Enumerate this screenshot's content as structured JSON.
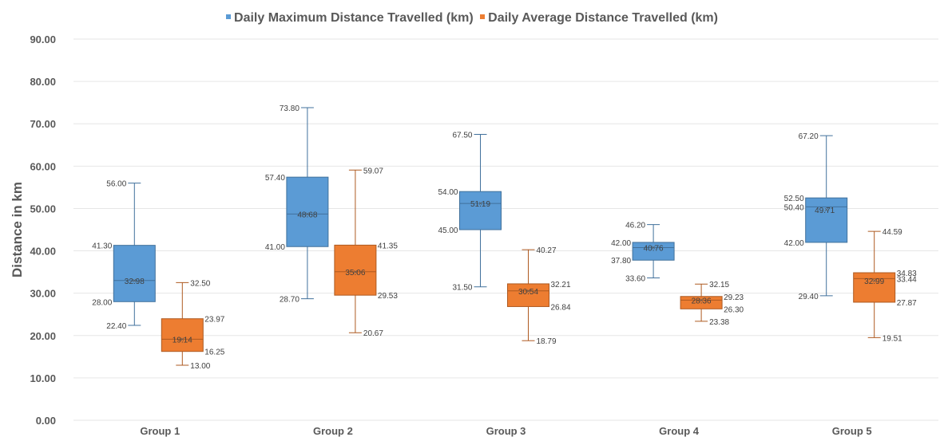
{
  "chart_data": {
    "type": "boxplot",
    "title": "",
    "xlabel": "",
    "ylabel": "Distance in km",
    "ylim": [
      0,
      90
    ],
    "y_ticks": [
      "0.00",
      "10.00",
      "20.00",
      "30.00",
      "40.00",
      "50.00",
      "60.00",
      "70.00",
      "80.00",
      "90.00"
    ],
    "categories": [
      "Group 1",
      "Group 2",
      "Group 3",
      "Group 4",
      "Group 5"
    ],
    "grid": true,
    "legend_position": "top-center",
    "series": [
      {
        "name": "Daily Maximum Distance Travelled (km)",
        "color": "#5B9BD5",
        "stroke": "#41719C",
        "boxes": [
          {
            "min": 22.4,
            "q1": 28.0,
            "median": 33.0,
            "mean": 32.98,
            "q3": 41.3,
            "max": 56.0,
            "labels": {
              "min": "22.40",
              "q1": "28.00",
              "mean": "32.98",
              "q3": "41.30",
              "max": "56.00"
            }
          },
          {
            "min": 28.7,
            "q1": 41.0,
            "median": 48.7,
            "mean": 48.68,
            "q3": 57.4,
            "max": 73.8,
            "labels": {
              "min": "28.70",
              "q1": "41.00",
              "mean": "48.68",
              "q3": "57.40",
              "max": "73.80"
            }
          },
          {
            "min": 31.5,
            "q1": 45.0,
            "median": 51.19,
            "mean": 51.19,
            "q3": 54.0,
            "max": 67.5,
            "labels": {
              "min": "31.50",
              "q1": "45.00",
              "mean": "51.19",
              "q3": "54.00",
              "max": "67.50"
            }
          },
          {
            "min": 33.6,
            "q1": 37.8,
            "median": 40.76,
            "mean": 40.76,
            "q3": 42.0,
            "max": 46.2,
            "labels": {
              "min": "33.60",
              "q1": "37.80",
              "mean": "40.76",
              "q3": "42.00",
              "max": "46.20"
            }
          },
          {
            "min": 29.4,
            "q1": 42.0,
            "median": 50.4,
            "mean": 49.71,
            "q3": 52.5,
            "max": 67.2,
            "labels": {
              "min": "29.40",
              "q1": "42.00",
              "median": "50.40",
              "mean": "49.71",
              "q3": "52.50",
              "max": "67.20"
            }
          }
        ]
      },
      {
        "name": "Daily Average Distance Travelled (km)",
        "color": "#ED7D31",
        "stroke": "#AE5A21",
        "boxes": [
          {
            "min": 13.0,
            "q1": 16.25,
            "median": 19.14,
            "mean": 19.14,
            "q3": 23.97,
            "max": 32.5,
            "labels": {
              "min": "13.00",
              "q1": "16.25",
              "mean": "19.14",
              "q3": "23.97",
              "max": "32.50"
            }
          },
          {
            "min": 20.67,
            "q1": 29.53,
            "median": 35.06,
            "mean": 35.06,
            "q3": 41.35,
            "max": 59.07,
            "labels": {
              "min": "20.67",
              "q1": "29.53",
              "mean": "35.06",
              "q3": "41.35",
              "max": "59.07"
            }
          },
          {
            "min": 18.79,
            "q1": 26.84,
            "median": 30.54,
            "mean": 30.54,
            "q3": 32.21,
            "max": 40.27,
            "labels": {
              "min": "18.79",
              "q1": "26.84",
              "mean": "30.54",
              "q3": "32.21",
              "max": "40.27"
            }
          },
          {
            "min": 23.38,
            "q1": 26.3,
            "median": 28.36,
            "mean": 28.36,
            "q3": 29.23,
            "max": 32.15,
            "labels": {
              "min": "23.38",
              "q1": "26.30",
              "mean": "28.36",
              "q3": "29.23",
              "max": "32.15"
            }
          },
          {
            "min": 19.51,
            "q1": 27.87,
            "median": 33.44,
            "mean": 32.99,
            "q3": 34.83,
            "max": 44.59,
            "labels": {
              "min": "19.51",
              "q1": "27.87",
              "median": "33.44",
              "mean": "32.99",
              "q3": "34.83",
              "max": "44.59"
            }
          }
        ]
      }
    ]
  }
}
